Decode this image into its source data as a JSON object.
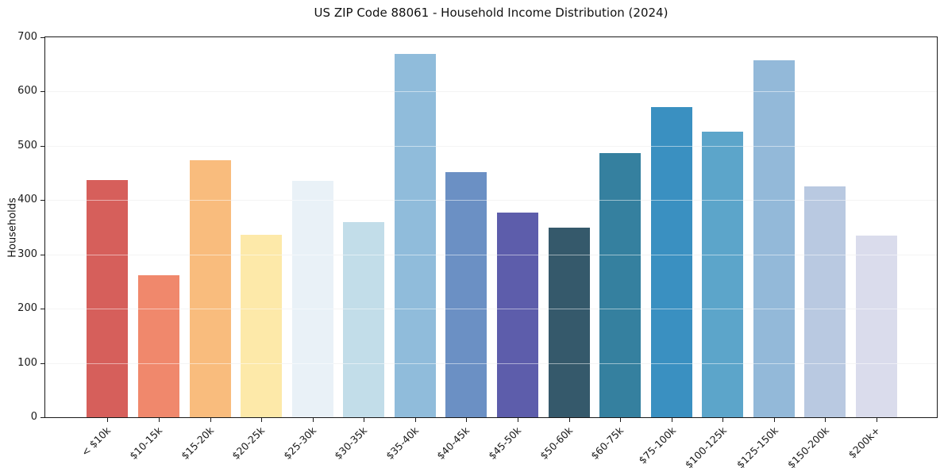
{
  "chart_data": {
    "type": "bar",
    "title": "US ZIP Code 88061 - Household Income Distribution (2024)",
    "xlabel": "",
    "ylabel": "Households",
    "ylim": [
      0,
      700
    ],
    "yticks": [
      0,
      100,
      200,
      300,
      400,
      500,
      600,
      700
    ],
    "grid": "horizontal",
    "legend_position": "none",
    "categories": [
      "< $10k",
      "$10-15k",
      "$15-20k",
      "$20-25k",
      "$25-30k",
      "$30-35k",
      "$35-40k",
      "$40-45k",
      "$45-50k",
      "$50-60k",
      "$60-75k",
      "$75-100k",
      "$100-125k",
      "$125-150k",
      "$150-200k",
      "$200k+"
    ],
    "values": [
      437,
      261,
      473,
      336,
      435,
      359,
      669,
      452,
      377,
      349,
      487,
      571,
      526,
      657,
      425,
      335
    ],
    "bar_colors": [
      "#d65f5b",
      "#f0886c",
      "#f9bc7d",
      "#fde9a9",
      "#e9f1f7",
      "#c2dde9",
      "#90bcdb",
      "#6b90c4",
      "#5d5dab",
      "#35596b",
      "#35809f",
      "#3a90c1",
      "#5ca5ca",
      "#93b9d9",
      "#b9c9e1",
      "#dadcec"
    ],
    "colors": {
      "axis": "#1a1a1a",
      "grid": "#e8e8e8",
      "background": "#ffffff",
      "text": "#111111"
    }
  }
}
